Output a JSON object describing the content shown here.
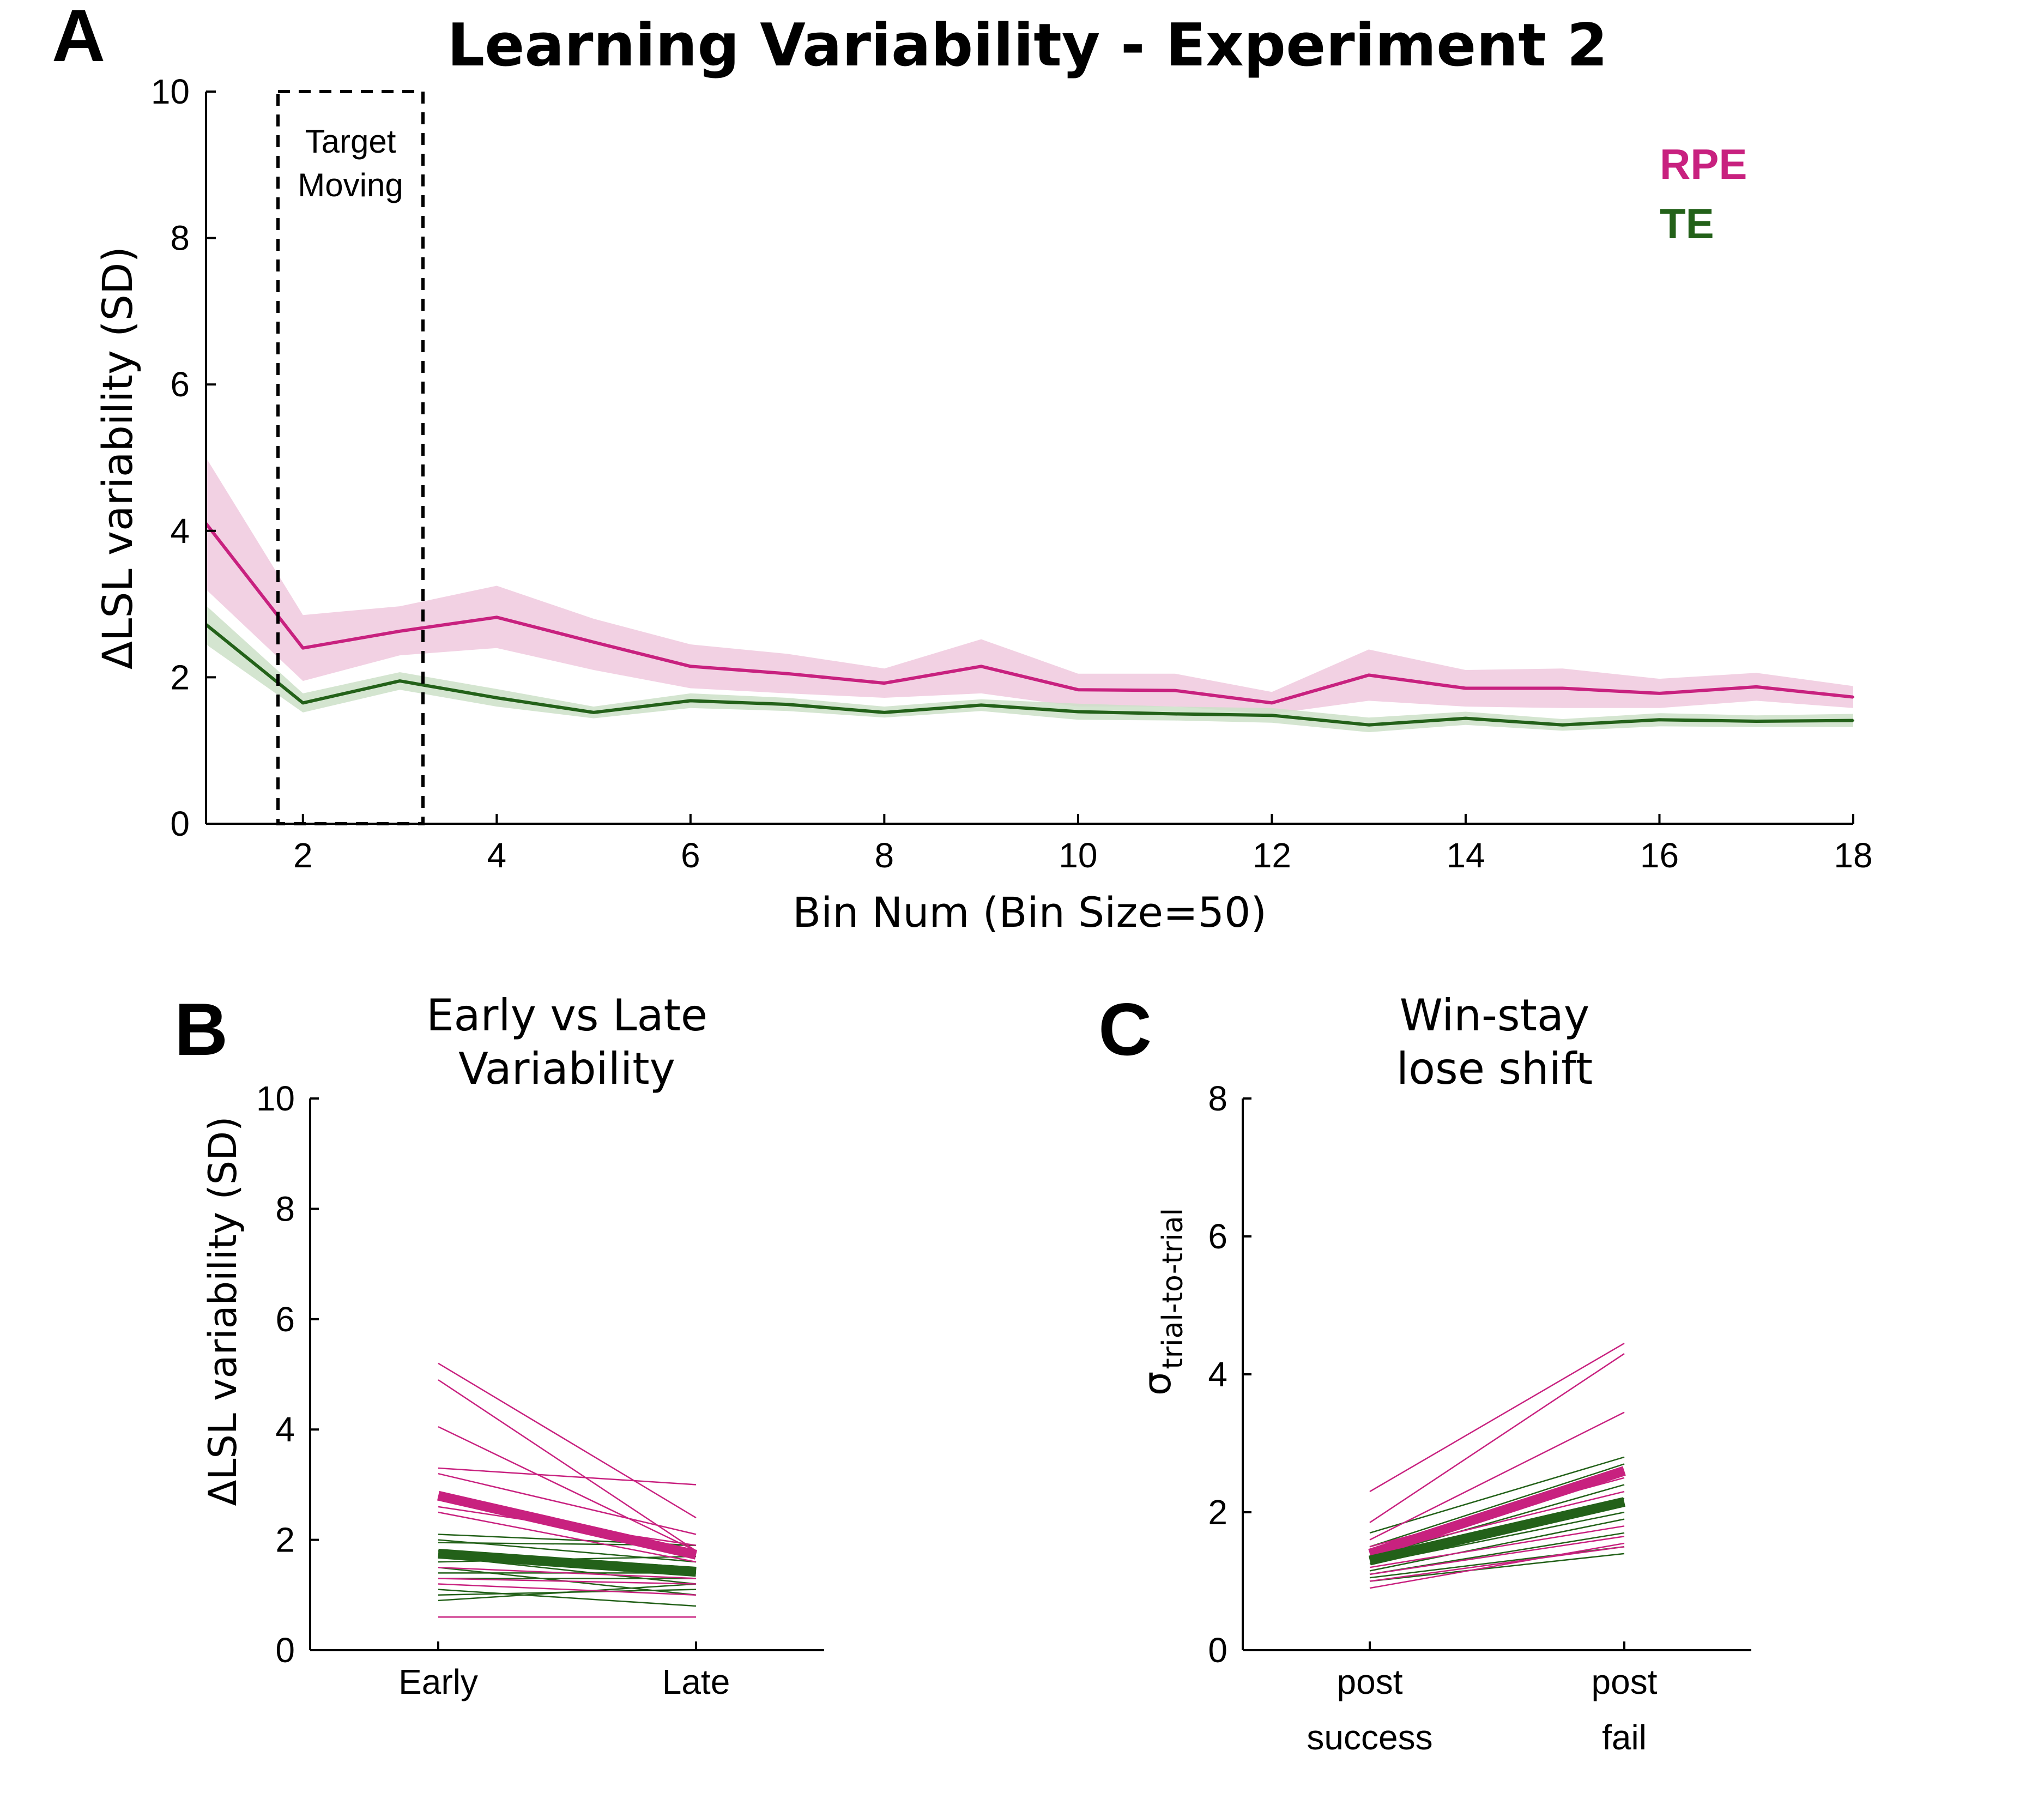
{
  "colors": {
    "rpe": "#C8217F",
    "rpe_band": "#F0C9DE",
    "te": "#236119",
    "te_band": "#CDE0C8",
    "axis": "#000000"
  },
  "chart_data": [
    {
      "panel": "A",
      "type": "line",
      "title": "Learning Variability - Experiment 2",
      "xlabel": "Bin Num (Bin Size=50)",
      "ylabel": "ΔLSL variability (SD)",
      "xlim": [
        1,
        18
      ],
      "ylim": [
        0,
        10
      ],
      "xticks": [
        "2",
        "4",
        "6",
        "8",
        "10",
        "12",
        "14",
        "16",
        "18"
      ],
      "yticks": [
        "0",
        "2",
        "4",
        "6",
        "8",
        "10"
      ],
      "annotation": {
        "label_line1": "Target",
        "label_line2": "Moving",
        "x_range": [
          1.75,
          3.25
        ]
      },
      "legend": {
        "position": "top-right",
        "entries": [
          "RPE",
          "TE"
        ]
      },
      "x": [
        1,
        2,
        3,
        4,
        5,
        6,
        7,
        8,
        9,
        10,
        11,
        12,
        13,
        14,
        15,
        16,
        17,
        18
      ],
      "series": [
        {
          "name": "RPE",
          "values": [
            4.1,
            2.4,
            2.63,
            2.82,
            2.48,
            2.15,
            2.05,
            1.92,
            2.15,
            1.83,
            1.82,
            1.65,
            2.03,
            1.85,
            1.85,
            1.78,
            1.87,
            1.73
          ],
          "band_lower": [
            3.2,
            1.95,
            2.3,
            2.4,
            2.1,
            1.85,
            1.78,
            1.72,
            1.78,
            1.6,
            1.6,
            1.5,
            1.68,
            1.6,
            1.58,
            1.58,
            1.68,
            1.58
          ],
          "band_upper": [
            5.0,
            2.85,
            2.97,
            3.25,
            2.8,
            2.45,
            2.32,
            2.12,
            2.52,
            2.05,
            2.05,
            1.8,
            2.38,
            2.1,
            2.12,
            1.98,
            2.06,
            1.88
          ]
        },
        {
          "name": "TE",
          "values": [
            2.72,
            1.65,
            1.95,
            1.72,
            1.52,
            1.68,
            1.63,
            1.52,
            1.62,
            1.53,
            1.5,
            1.48,
            1.35,
            1.44,
            1.35,
            1.42,
            1.4,
            1.41
          ],
          "band_lower": [
            2.45,
            1.52,
            1.83,
            1.6,
            1.44,
            1.58,
            1.54,
            1.45,
            1.54,
            1.42,
            1.41,
            1.38,
            1.25,
            1.35,
            1.27,
            1.33,
            1.32,
            1.32
          ],
          "band_upper": [
            2.98,
            1.78,
            2.07,
            1.84,
            1.6,
            1.78,
            1.72,
            1.6,
            1.7,
            1.64,
            1.6,
            1.58,
            1.45,
            1.53,
            1.43,
            1.51,
            1.48,
            1.5
          ]
        }
      ]
    },
    {
      "panel": "B",
      "type": "line",
      "title_line1": "Early vs Late",
      "title_line2": "Variability",
      "ylabel": "ΔLSL variability (SD)",
      "categories": [
        "Early",
        "Late"
      ],
      "ylim": [
        0,
        10
      ],
      "yticks": [
        "0",
        "2",
        "4",
        "6",
        "8",
        "10"
      ],
      "series": [
        {
          "name": "RPE",
          "values": [
            2.8,
            1.73
          ]
        },
        {
          "name": "TE",
          "values": [
            1.75,
            1.42
          ]
        }
      ],
      "subjects": {
        "RPE": [
          [
            5.2,
            2.4
          ],
          [
            4.9,
            1.8
          ],
          [
            4.05,
            1.8
          ],
          [
            3.3,
            3.0
          ],
          [
            3.2,
            2.1
          ],
          [
            2.6,
            1.9
          ],
          [
            2.5,
            1.6
          ],
          [
            1.5,
            1.3
          ],
          [
            1.3,
            1.2
          ],
          [
            1.2,
            1.0
          ],
          [
            0.6,
            0.6
          ]
        ],
        "TE": [
          [
            2.1,
            1.9
          ],
          [
            2.0,
            1.6
          ],
          [
            1.95,
            1.9
          ],
          [
            1.8,
            1.5
          ],
          [
            1.7,
            1.2
          ],
          [
            1.6,
            1.7
          ],
          [
            1.5,
            1.0
          ],
          [
            1.4,
            1.4
          ],
          [
            1.3,
            1.3
          ],
          [
            1.1,
            0.8
          ],
          [
            1.0,
            1.1
          ],
          [
            0.9,
            1.2
          ]
        ]
      }
    },
    {
      "panel": "C",
      "type": "line",
      "title_line1": "Win-stay",
      "title_line2": "lose shift",
      "ylabel": "σ",
      "ylabel_sub": "trial-to-trial",
      "categories_line1": [
        "post",
        "post"
      ],
      "categories_line2": [
        "success",
        "fail"
      ],
      "ylim": [
        0,
        8
      ],
      "yticks": [
        "0",
        "2",
        "4",
        "6",
        "8"
      ],
      "series": [
        {
          "name": "RPE",
          "values": [
            1.4,
            2.6
          ]
        },
        {
          "name": "TE",
          "values": [
            1.3,
            2.15
          ]
        }
      ],
      "subjects": {
        "RPE": [
          [
            2.3,
            4.45
          ],
          [
            1.85,
            4.3
          ],
          [
            1.6,
            3.45
          ],
          [
            1.5,
            2.5
          ],
          [
            1.4,
            2.3
          ],
          [
            1.3,
            2.1
          ],
          [
            1.2,
            1.8
          ],
          [
            1.1,
            1.65
          ],
          [
            1.0,
            1.5
          ],
          [
            0.9,
            1.55
          ]
        ],
        "TE": [
          [
            1.7,
            2.8
          ],
          [
            1.5,
            2.7
          ],
          [
            1.45,
            2.6
          ],
          [
            1.35,
            2.4
          ],
          [
            1.3,
            2.2
          ],
          [
            1.25,
            2.0
          ],
          [
            1.15,
            1.9
          ],
          [
            1.1,
            1.7
          ],
          [
            1.05,
            1.5
          ],
          [
            1.0,
            1.4
          ]
        ]
      }
    }
  ]
}
